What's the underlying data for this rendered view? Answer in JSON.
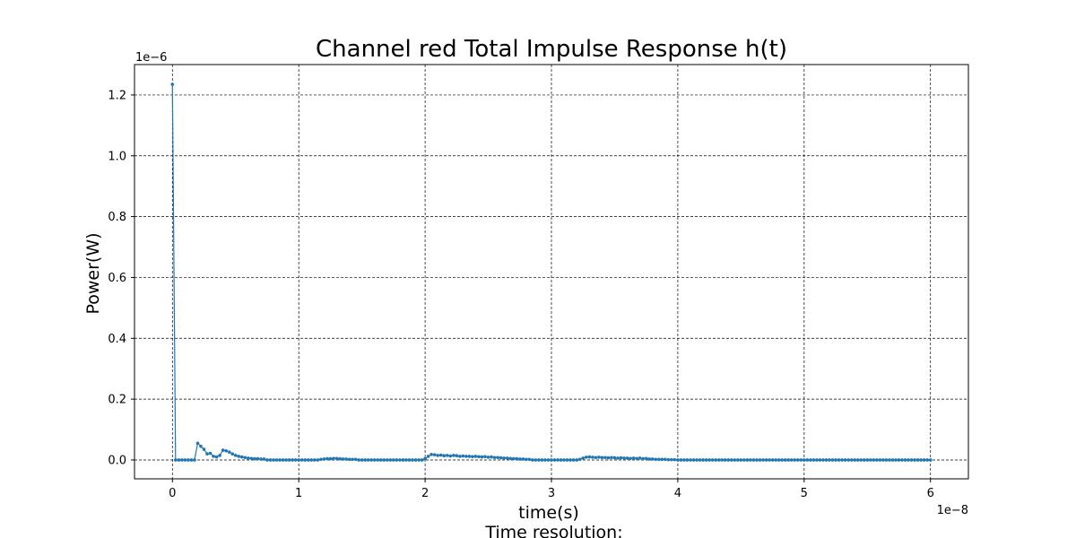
{
  "chart_data": {
    "type": "line",
    "title": "Channel red Total Impulse Response h(t)",
    "xlabel": "time(s)",
    "xlabel_line2": "Time resolution:",
    "ylabel": "Power(W)",
    "x_offset_text": "1e−8",
    "y_offset_text": "1e−6",
    "x_scale": 1e-08,
    "y_scale": 1e-06,
    "xlim": [
      -0.3,
      6.3
    ],
    "ylim": [
      -0.062,
      1.3
    ],
    "xticks": [
      0,
      1,
      2,
      3,
      4,
      5,
      6
    ],
    "xtick_labels": [
      "0",
      "1",
      "2",
      "3",
      "4",
      "5",
      "6"
    ],
    "yticks": [
      0.0,
      0.2,
      0.4,
      0.6,
      0.8,
      1.0,
      1.2
    ],
    "ytick_labels": [
      "0.0",
      "0.2",
      "0.4",
      "0.6",
      "0.8",
      "1.0",
      "1.2"
    ],
    "grid": true,
    "color": "#1f77b4",
    "sample_step": 0.025,
    "x_max": 6.0,
    "series": [
      {
        "points": [
          [
            0.0,
            1.235
          ],
          [
            0.2,
            0.055
          ],
          [
            0.225,
            0.045
          ],
          [
            0.25,
            0.035
          ],
          [
            0.275,
            0.02
          ],
          [
            0.3,
            0.022
          ],
          [
            0.325,
            0.012
          ],
          [
            0.35,
            0.01
          ],
          [
            0.375,
            0.015
          ],
          [
            0.4,
            0.032
          ],
          [
            0.425,
            0.03
          ],
          [
            0.45,
            0.026
          ],
          [
            0.475,
            0.02
          ],
          [
            0.5,
            0.015
          ],
          [
            0.525,
            0.012
          ],
          [
            0.55,
            0.01
          ],
          [
            0.575,
            0.008
          ],
          [
            0.6,
            0.006
          ],
          [
            0.625,
            0.005
          ],
          [
            0.65,
            0.004
          ],
          [
            0.675,
            0.004
          ],
          [
            0.7,
            0.003
          ],
          [
            0.725,
            0.003
          ],
          [
            1.175,
            0.002
          ],
          [
            1.2,
            0.003
          ],
          [
            1.225,
            0.004
          ],
          [
            1.25,
            0.004
          ],
          [
            1.275,
            0.005
          ],
          [
            1.3,
            0.005
          ],
          [
            1.325,
            0.004
          ],
          [
            1.35,
            0.003
          ],
          [
            1.375,
            0.003
          ],
          [
            1.4,
            0.002
          ],
          [
            1.425,
            0.002
          ],
          [
            1.45,
            0.002
          ],
          [
            2.0,
            0.004
          ],
          [
            2.025,
            0.012
          ],
          [
            2.05,
            0.018
          ],
          [
            2.075,
            0.017
          ],
          [
            2.1,
            0.015
          ],
          [
            2.125,
            0.016
          ],
          [
            2.15,
            0.014
          ],
          [
            2.175,
            0.015
          ],
          [
            2.2,
            0.013
          ],
          [
            2.225,
            0.015
          ],
          [
            2.25,
            0.014
          ],
          [
            2.275,
            0.012
          ],
          [
            2.3,
            0.013
          ],
          [
            2.325,
            0.012
          ],
          [
            2.35,
            0.012
          ],
          [
            2.375,
            0.011
          ],
          [
            2.4,
            0.012
          ],
          [
            2.425,
            0.011
          ],
          [
            2.45,
            0.01
          ],
          [
            2.475,
            0.011
          ],
          [
            2.5,
            0.009
          ],
          [
            2.525,
            0.01
          ],
          [
            2.55,
            0.008
          ],
          [
            2.575,
            0.008
          ],
          [
            2.6,
            0.007
          ],
          [
            2.625,
            0.006
          ],
          [
            2.65,
            0.006
          ],
          [
            2.675,
            0.005
          ],
          [
            2.7,
            0.004
          ],
          [
            2.725,
            0.004
          ],
          [
            2.75,
            0.003
          ],
          [
            2.775,
            0.003
          ],
          [
            2.8,
            0.002
          ],
          [
            2.825,
            0.002
          ],
          [
            3.225,
            0.002
          ],
          [
            3.25,
            0.006
          ],
          [
            3.275,
            0.009
          ],
          [
            3.3,
            0.01
          ],
          [
            3.325,
            0.009
          ],
          [
            3.35,
            0.008
          ],
          [
            3.375,
            0.009
          ],
          [
            3.4,
            0.008
          ],
          [
            3.425,
            0.008
          ],
          [
            3.45,
            0.007
          ],
          [
            3.475,
            0.008
          ],
          [
            3.5,
            0.007
          ],
          [
            3.525,
            0.006
          ],
          [
            3.55,
            0.007
          ],
          [
            3.575,
            0.006
          ],
          [
            3.6,
            0.006
          ],
          [
            3.625,
            0.005
          ],
          [
            3.65,
            0.006
          ],
          [
            3.675,
            0.005
          ],
          [
            3.7,
            0.006
          ],
          [
            3.725,
            0.004
          ],
          [
            3.75,
            0.005
          ],
          [
            3.775,
            0.003
          ],
          [
            3.8,
            0.003
          ],
          [
            3.825,
            0.002
          ],
          [
            3.85,
            0.002
          ],
          [
            3.875,
            0.002
          ],
          [
            3.9,
            0.002
          ],
          [
            3.925,
            0.001
          ],
          [
            3.95,
            0.001
          ],
          [
            3.975,
            0.001
          ]
        ]
      }
    ]
  }
}
